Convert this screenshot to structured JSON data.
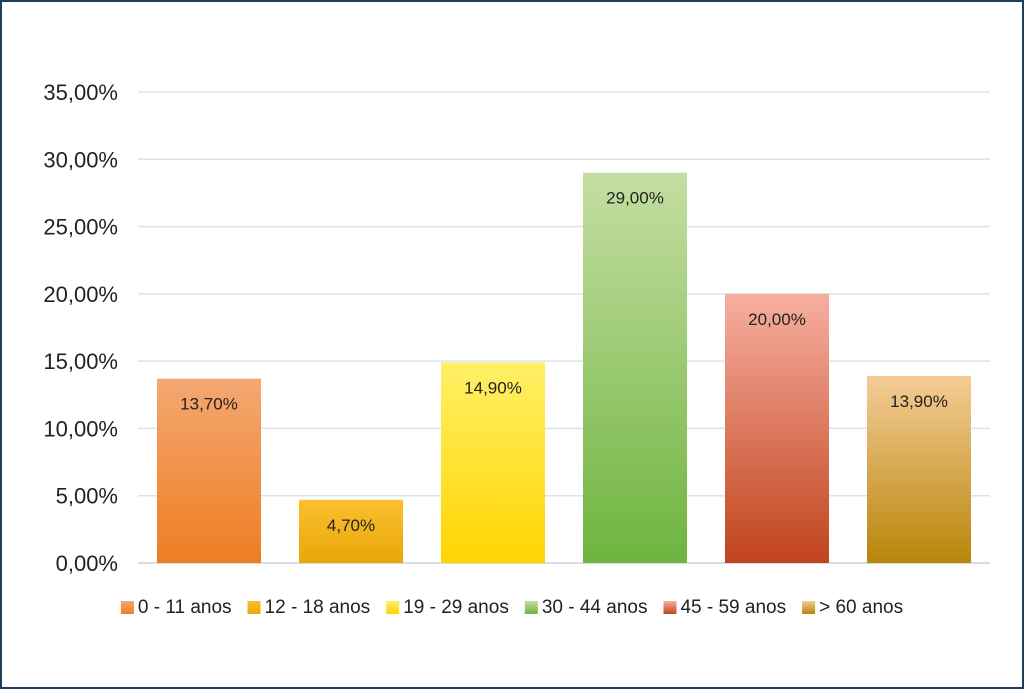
{
  "chart_data": {
    "type": "bar",
    "title": "",
    "xlabel": "",
    "ylabel": "",
    "ylim": [
      0,
      35
    ],
    "yticks": [
      "0,00%",
      "5,00%",
      "10,00%",
      "15,00%",
      "20,00%",
      "25,00%",
      "30,00%",
      "35,00%"
    ],
    "grid": true,
    "legend_position": "bottom",
    "series": [
      {
        "name": "0 - 11 anos",
        "values": [
          13.7
        ],
        "label": "13,70%",
        "color_top": "#f4a872",
        "color_bottom": "#ee7d22"
      },
      {
        "name": "12 - 18 anos",
        "values": [
          4.7
        ],
        "label": "4,70%",
        "color_top": "#fbc02d",
        "color_bottom": "#e8a70a"
      },
      {
        "name": "19 - 29 anos",
        "values": [
          14.9
        ],
        "label": "14,90%",
        "color_top": "#fff066",
        "color_bottom": "#ffd400"
      },
      {
        "name": "30 - 44 anos",
        "values": [
          29.0
        ],
        "label": "29,00%",
        "color_top": "#c4dea2",
        "color_bottom": "#6eb43f"
      },
      {
        "name": "45 - 59 anos",
        "values": [
          20.0
        ],
        "label": "20,00%",
        "color_top": "#f7aea0",
        "color_bottom": "#c0441c"
      },
      {
        "name": "> 60 anos",
        "values": [
          13.9
        ],
        "label": "13,90%",
        "color_top": "#f5cc96",
        "color_bottom": "#b8860b"
      }
    ]
  }
}
